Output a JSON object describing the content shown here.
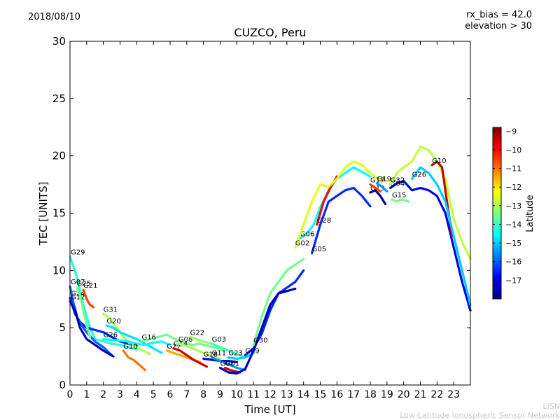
{
  "header": {
    "date": "2018/08/10",
    "rx_bias": "rx_bias = 42.0",
    "elevation": "elevation > 30"
  },
  "footer": {
    "line1": "LISN",
    "line2": "Low-Latitude Ionospheric Sensor Network"
  },
  "chart_data": {
    "type": "scatter",
    "title": "CUZCO, Peru",
    "xlabel": "Time [UT]",
    "ylabel": "TEC [UNITS]",
    "xlim": [
      0,
      24
    ],
    "ylim": [
      0,
      30
    ],
    "xticks": [
      0,
      1,
      2,
      3,
      4,
      5,
      6,
      7,
      8,
      9,
      10,
      11,
      12,
      13,
      14,
      15,
      16,
      17,
      18,
      19,
      20,
      21,
      22,
      23
    ],
    "yticks": [
      0,
      5,
      10,
      15,
      20,
      25,
      30
    ],
    "colorbar": {
      "label": "Latitude",
      "range": [
        -18,
        -8.8
      ],
      "ticks": [
        -9,
        -10,
        -11,
        -12,
        -13,
        -14,
        -15,
        -16,
        -17
      ],
      "colormap": [
        "#00007f",
        "#0000ff",
        "#007fff",
        "#00ffff",
        "#7fff7f",
        "#ffff00",
        "#ff7f00",
        "#ff0000",
        "#7f0000"
      ]
    },
    "grid": false,
    "series": [
      {
        "name": "G29",
        "lat": -14.2,
        "points": [
          [
            0,
            11.2
          ],
          [
            0.4,
            9.5
          ],
          [
            0.8,
            7.0
          ],
          [
            1.2,
            5.0
          ],
          [
            1.5,
            4.0
          ],
          [
            2.0,
            3.8
          ],
          [
            2.5,
            3.6
          ],
          [
            3.0,
            3.5
          ],
          [
            3.5,
            3.3
          ],
          [
            4.0,
            3.1
          ]
        ]
      },
      {
        "name": "G24",
        "lat": -16.5,
        "points": [
          [
            0,
            7.6
          ],
          [
            0.3,
            6.2
          ],
          [
            0.6,
            5.5
          ],
          [
            1.0,
            5.0
          ],
          [
            1.5,
            4.8
          ],
          [
            2.0,
            4.6
          ],
          [
            2.5,
            4.2
          ],
          [
            3.0,
            3.8
          ],
          [
            3.5,
            3.6
          ],
          [
            4.0,
            3.4
          ]
        ]
      },
      {
        "name": "G07",
        "lat": -16.0,
        "points": [
          [
            0,
            8.6
          ],
          [
            0.2,
            7.2
          ],
          [
            0.5,
            5.6
          ],
          [
            1.0,
            4.6
          ],
          [
            1.5,
            3.8
          ],
          [
            2.0,
            3.3
          ],
          [
            2.5,
            2.6
          ]
        ]
      },
      {
        "name": "G12",
        "lat": -17.5,
        "points": [
          [
            0,
            7.3
          ],
          [
            0.3,
            6.5
          ],
          [
            0.6,
            5.0
          ],
          [
            1.0,
            4.0
          ],
          [
            1.5,
            3.5
          ],
          [
            2.0,
            3.0
          ],
          [
            2.6,
            2.5
          ]
        ]
      },
      {
        "name": "G21",
        "lat": -10.5,
        "points": [
          [
            0.8,
            8.3
          ],
          [
            1.0,
            7.5
          ],
          [
            1.2,
            7.0
          ],
          [
            1.4,
            6.8
          ]
        ]
      },
      {
        "name": "G25",
        "lat": -13.5,
        "points": [
          [
            0.4,
            8.5
          ],
          [
            0.6,
            7.8
          ],
          [
            0.8,
            6.5
          ],
          [
            1.0,
            5.2
          ],
          [
            1.2,
            4.2
          ]
        ]
      },
      {
        "name": "G31",
        "lat": -13.0,
        "points": [
          [
            2.0,
            6.2
          ],
          [
            2.4,
            5.8
          ],
          [
            2.8,
            5.0
          ],
          [
            3.2,
            4.2
          ],
          [
            3.6,
            3.6
          ],
          [
            4.0,
            3.3
          ],
          [
            4.4,
            3.0
          ],
          [
            4.8,
            2.7
          ]
        ]
      },
      {
        "name": "G20",
        "lat": -14.8,
        "points": [
          [
            2.2,
            5.2
          ],
          [
            2.6,
            5.0
          ],
          [
            3.0,
            4.6
          ],
          [
            3.5,
            4.3
          ],
          [
            4.0,
            4.0
          ],
          [
            4.5,
            3.6
          ],
          [
            5.0,
            3.2
          ],
          [
            5.5,
            2.8
          ]
        ]
      },
      {
        "name": "G26",
        "lat": -14.5,
        "points": [
          [
            2.0,
            4.0
          ],
          [
            2.8,
            3.9
          ],
          [
            3.5,
            3.8
          ],
          [
            4.0,
            3.6
          ],
          [
            4.5,
            3.5
          ],
          [
            5.0,
            3.7
          ],
          [
            5.5,
            3.8
          ],
          [
            6.0,
            3.5
          ]
        ]
      },
      {
        "name": "G10",
        "lat": -11.0,
        "points": [
          [
            3.2,
            3.0
          ],
          [
            3.5,
            2.4
          ],
          [
            3.8,
            2.2
          ],
          [
            4.2,
            1.7
          ],
          [
            4.5,
            1.3
          ]
        ]
      },
      {
        "name": "G16",
        "lat": -13.5,
        "points": [
          [
            4.3,
            3.8
          ],
          [
            4.8,
            4.0
          ],
          [
            5.3,
            4.2
          ],
          [
            5.8,
            4.4
          ],
          [
            6.3,
            4.0
          ],
          [
            6.8,
            3.7
          ],
          [
            7.3,
            3.5
          ],
          [
            7.8,
            3.6
          ],
          [
            8.3,
            3.4
          ],
          [
            8.8,
            3.2
          ],
          [
            9.2,
            3.0
          ]
        ]
      },
      {
        "name": "G27",
        "lat": -11.5,
        "points": [
          [
            5.8,
            3.0
          ],
          [
            6.2,
            2.8
          ],
          [
            6.6,
            2.6
          ],
          [
            7.0,
            2.4
          ],
          [
            7.4,
            2.2
          ],
          [
            7.8,
            2.0
          ]
        ]
      },
      {
        "name": "G14",
        "lat": -9.5,
        "points": [
          [
            6.2,
            3.2
          ],
          [
            6.6,
            3.0
          ],
          [
            7.0,
            2.6
          ],
          [
            7.4,
            2.2
          ],
          [
            7.8,
            1.9
          ],
          [
            8.2,
            1.6
          ]
        ]
      },
      {
        "name": "G08",
        "lat": -13.0,
        "points": [
          [
            6.5,
            3.6
          ],
          [
            7.0,
            3.4
          ],
          [
            7.5,
            3.1
          ],
          [
            8.0,
            2.8
          ],
          [
            8.5,
            2.5
          ],
          [
            9.0,
            2.3
          ]
        ]
      },
      {
        "name": "G22",
        "lat": -13.2,
        "points": [
          [
            7.2,
            4.2
          ],
          [
            7.6,
            4.0
          ],
          [
            8.0,
            3.8
          ],
          [
            8.5,
            3.6
          ],
          [
            9.0,
            3.3
          ],
          [
            9.5,
            3.0
          ]
        ]
      },
      {
        "name": "G03",
        "lat": -14.0,
        "points": [
          [
            8.5,
            3.6
          ],
          [
            9.0,
            3.3
          ],
          [
            9.5,
            3.0
          ],
          [
            10.0,
            2.7
          ],
          [
            10.5,
            2.4
          ]
        ]
      },
      {
        "name": "G18",
        "lat": -17.0,
        "points": [
          [
            8.0,
            2.3
          ],
          [
            8.5,
            2.2
          ],
          [
            9.0,
            2.1
          ],
          [
            9.5,
            2.1
          ],
          [
            10.0,
            2.0
          ]
        ]
      },
      {
        "name": "G11",
        "lat": -15.5,
        "points": [
          [
            8.5,
            2.4
          ],
          [
            9.0,
            2.1
          ],
          [
            9.5,
            1.8
          ],
          [
            10.0,
            1.5
          ],
          [
            10.5,
            1.3
          ]
        ]
      },
      {
        "name": "G23",
        "lat": -15.0,
        "points": [
          [
            9.5,
            2.4
          ],
          [
            10.0,
            2.3
          ],
          [
            10.5,
            2.4
          ],
          [
            11.0,
            2.8
          ]
        ]
      },
      {
        "name": "G09",
        "lat": -16.5,
        "points": [
          [
            10.5,
            2.6
          ],
          [
            11.0,
            3.2
          ],
          [
            11.5,
            4.5
          ],
          [
            12.0,
            6.5
          ],
          [
            12.5,
            8.0
          ],
          [
            13.0,
            8.5
          ],
          [
            13.5,
            9.0
          ],
          [
            14.0,
            10.0
          ]
        ]
      },
      {
        "name": "G01",
        "lat": -9.5,
        "points": [
          [
            9.3,
            1.5
          ],
          [
            9.6,
            1.3
          ],
          [
            9.9,
            1.2
          ],
          [
            10.2,
            1.1
          ]
        ]
      },
      {
        "name": "G07",
        "lat": -17.5,
        "points": [
          [
            9.0,
            1.5
          ],
          [
            9.5,
            1.1
          ],
          [
            10.0,
            1.0
          ],
          [
            10.5,
            1.4
          ],
          [
            11.0,
            3.0
          ],
          [
            11.5,
            5.0
          ],
          [
            12.0,
            7.0
          ],
          [
            12.5,
            8.0
          ],
          [
            13.0,
            8.2
          ],
          [
            13.5,
            8.4
          ]
        ]
      },
      {
        "name": "G30",
        "lat": -13.5,
        "points": [
          [
            11.0,
            3.5
          ],
          [
            11.5,
            6.0
          ],
          [
            12.0,
            8.0
          ],
          [
            12.5,
            9.0
          ],
          [
            13.0,
            10.0
          ],
          [
            13.5,
            10.5
          ],
          [
            14.0,
            11.0
          ]
        ]
      },
      {
        "name": "G06",
        "lat": -14.5,
        "points": [
          [
            13.8,
            12.8
          ],
          [
            14.2,
            13.2
          ],
          [
            14.6,
            14.0
          ],
          [
            15.0,
            15.5
          ],
          [
            15.5,
            17.0
          ],
          [
            16.0,
            18.0
          ],
          [
            16.5,
            18.5
          ],
          [
            17.0,
            19.0
          ],
          [
            17.5,
            18.6
          ],
          [
            18.0,
            18.2
          ]
        ]
      },
      {
        "name": "G28",
        "lat": -10.0,
        "points": [
          [
            14.8,
            14.0
          ],
          [
            15.2,
            16.0
          ],
          [
            15.6,
            17.2
          ],
          [
            16.0,
            18.2
          ]
        ]
      },
      {
        "name": "G05",
        "lat": -16.5,
        "points": [
          [
            14.5,
            11.5
          ],
          [
            15.0,
            14.0
          ],
          [
            15.5,
            16.0
          ],
          [
            16.0,
            16.5
          ],
          [
            16.5,
            17.0
          ],
          [
            17.0,
            17.2
          ],
          [
            17.5,
            16.5
          ],
          [
            18.0,
            15.6
          ]
        ]
      },
      {
        "name": "G02",
        "lat": -12.5,
        "points": [
          [
            13.5,
            12.0
          ],
          [
            14.0,
            14.0
          ],
          [
            14.5,
            16.0
          ],
          [
            15.0,
            17.5
          ],
          [
            15.5,
            17.3
          ],
          [
            16.0,
            18.0
          ],
          [
            16.5,
            19.0
          ],
          [
            17.0,
            19.5
          ],
          [
            17.5,
            19.2
          ],
          [
            18.0,
            18.5
          ],
          [
            18.5,
            18.0
          ],
          [
            19.0,
            17.8
          ]
        ]
      },
      {
        "name": "G13",
        "lat": -17.8,
        "points": [
          [
            18.0,
            16.8
          ],
          [
            18.3,
            17.0
          ],
          [
            18.6,
            16.5
          ],
          [
            18.9,
            15.8
          ]
        ]
      },
      {
        "name": "G17",
        "lat": -10.5,
        "points": [
          [
            18.0,
            17.5
          ],
          [
            18.3,
            17.2
          ],
          [
            18.6,
            16.9
          ]
        ]
      },
      {
        "name": "G19",
        "lat": -15.5,
        "points": [
          [
            18.4,
            17.6
          ],
          [
            18.7,
            17.3
          ],
          [
            19.0,
            16.9
          ]
        ]
      },
      {
        "name": "G15",
        "lat": -13.5,
        "points": [
          [
            19.3,
            16.2
          ],
          [
            19.6,
            16.0
          ],
          [
            19.9,
            16.2
          ],
          [
            20.3,
            16.0
          ]
        ]
      },
      {
        "name": "G04",
        "lat": -17.0,
        "points": [
          [
            19.2,
            17.2
          ],
          [
            19.6,
            17.6
          ],
          [
            20.0,
            17.8
          ],
          [
            20.5,
            17.0
          ],
          [
            21.0,
            17.2
          ],
          [
            21.5,
            17.0
          ],
          [
            22.0,
            16.5
          ],
          [
            22.5,
            15.0
          ],
          [
            23.0,
            12.0
          ],
          [
            23.5,
            9.0
          ],
          [
            24.0,
            6.5
          ]
        ]
      },
      {
        "name": "G32",
        "lat": -12.8,
        "points": [
          [
            19.2,
            17.5
          ],
          [
            19.6,
            18.5
          ],
          [
            20.0,
            19.0
          ],
          [
            20.5,
            19.5
          ],
          [
            21.0,
            20.8
          ],
          [
            21.5,
            20.5
          ],
          [
            22.0,
            19.5
          ],
          [
            22.5,
            18.0
          ],
          [
            23.0,
            14.5
          ],
          [
            23.5,
            12.5
          ],
          [
            24.0,
            11.0
          ]
        ]
      },
      {
        "name": "G10",
        "lat": -9.5,
        "points": [
          [
            21.7,
            19.2
          ],
          [
            22.0,
            19.5
          ],
          [
            22.3,
            19.0
          ],
          [
            22.6,
            16.0
          ],
          [
            22.9,
            13.0
          ]
        ]
      },
      {
        "name": "G26",
        "lat": -15.0,
        "points": [
          [
            20.5,
            18.0
          ],
          [
            21.0,
            19.0
          ],
          [
            21.5,
            18.5
          ],
          [
            22.0,
            17.5
          ],
          [
            22.5,
            16.0
          ],
          [
            23.0,
            13.0
          ],
          [
            23.5,
            10.0
          ],
          [
            24.0,
            7.0
          ]
        ]
      }
    ]
  }
}
